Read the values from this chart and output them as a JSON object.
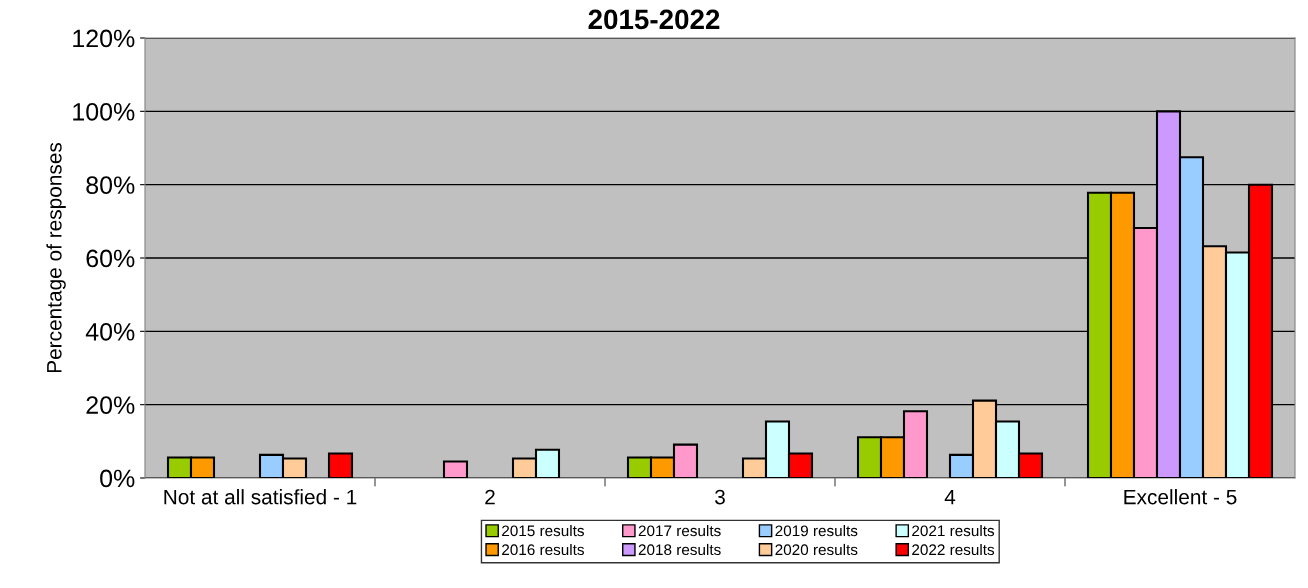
{
  "chart_data": {
    "type": "bar",
    "title": "2015-2022",
    "ylabel": "Percentage of responses",
    "categories": [
      "Not at all satisfied - 1",
      "2",
      "3",
      "4",
      "Excellent - 5"
    ],
    "series": [
      {
        "name": "2015 results",
        "color": "#99cc00",
        "values": [
          5.6,
          null,
          5.6,
          11.1,
          77.8
        ]
      },
      {
        "name": "2016 results",
        "color": "#ff9900",
        "values": [
          5.6,
          null,
          5.6,
          11.1,
          77.8
        ]
      },
      {
        "name": "2017 results",
        "color": "#ff99cc",
        "values": [
          null,
          4.5,
          9.1,
          18.2,
          68.2
        ]
      },
      {
        "name": "2018 results",
        "color": "#cc99ff",
        "values": [
          null,
          null,
          null,
          null,
          100
        ]
      },
      {
        "name": "2019 results",
        "color": "#99ccff",
        "values": [
          6.3,
          null,
          null,
          6.3,
          87.5
        ]
      },
      {
        "name": "2020 results",
        "color": "#ffcc99",
        "values": [
          5.3,
          5.3,
          5.3,
          21.1,
          63.2
        ]
      },
      {
        "name": "2021 results",
        "color": "#ccffff",
        "values": [
          null,
          7.7,
          15.4,
          15.4,
          61.5
        ]
      },
      {
        "name": "2022 results",
        "color": "#ff0000",
        "values": [
          6.7,
          null,
          6.7,
          6.7,
          80
        ]
      }
    ],
    "ylim": [
      0,
      120
    ],
    "yticks": [
      {
        "value": 0,
        "label": "0%"
      },
      {
        "value": 20,
        "label": "20%"
      },
      {
        "value": 40,
        "label": "40%"
      },
      {
        "value": 60,
        "label": "60%"
      },
      {
        "value": 80,
        "label": "80%"
      },
      {
        "value": 100,
        "label": "100%"
      },
      {
        "value": 120,
        "label": "120%"
      }
    ],
    "grid": "y",
    "legend": "bottom"
  }
}
